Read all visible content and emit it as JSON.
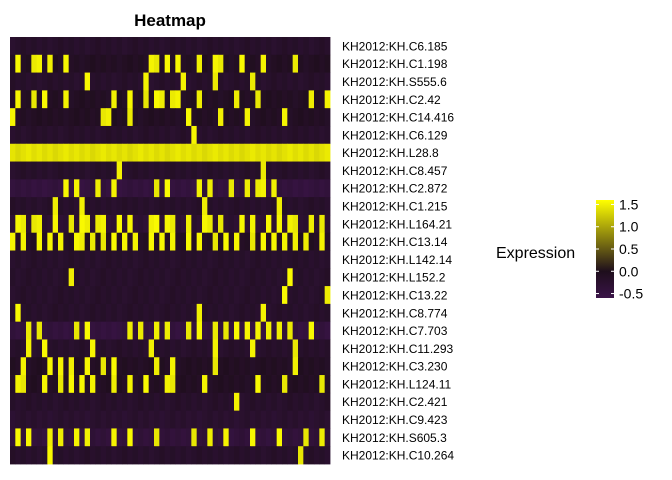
{
  "chart_data": {
    "type": "heatmap",
    "title": "Heatmap",
    "legend": {
      "title": "Expression",
      "ticks": [
        1.5,
        1.0,
        0.5,
        0.0,
        -0.5
      ],
      "tick_labels": [
        "1.5",
        "1.0",
        "0.5",
        "0.0",
        "-0.5"
      ],
      "range": [
        -0.6,
        1.6
      ],
      "placement": "right"
    },
    "color_scale": {
      "low": "#3a1448",
      "mid": "#1e0e1c",
      "high": "#ffff00"
    },
    "columns": 60,
    "rows": [
      {
        "label": "KH2012:KH.C6.185",
        "base": -0.2,
        "high_cols": []
      },
      {
        "label": "KH2012:KH.C1.198",
        "base": -0.1,
        "high_cols": [
          1,
          4,
          5,
          7,
          10,
          26,
          27,
          29,
          31,
          35,
          38,
          39,
          43,
          47,
          53
        ]
      },
      {
        "label": "KH2012:KH.S555.6",
        "base": -0.2,
        "high_cols": [
          14,
          25,
          32,
          38,
          45
        ]
      },
      {
        "label": "KH2012:KH.C2.42",
        "base": -0.1,
        "high_cols": [
          1,
          4,
          6,
          10,
          19,
          22,
          25,
          27,
          28,
          30,
          31,
          35,
          42,
          46,
          56,
          59
        ]
      },
      {
        "label": "KH2012:KH.C14.416",
        "base": -0.1,
        "high_cols": [
          0,
          17,
          18,
          22,
          33,
          39,
          44,
          51
        ]
      },
      {
        "label": "KH2012:KH.C6.129",
        "base": -0.2,
        "high_cols": [
          34
        ]
      },
      {
        "label": "KH2012:KH.L28.8",
        "base": 1.4,
        "high_cols": []
      },
      {
        "label": "KH2012:KH.C8.457",
        "base": -0.2,
        "high_cols": [
          20,
          47
        ]
      },
      {
        "label": "KH2012:KH.C2.872",
        "base": -0.45,
        "high_cols": [
          10,
          12,
          16,
          19,
          27,
          29,
          35,
          37,
          41,
          44,
          46,
          47,
          49
        ]
      },
      {
        "label": "KH2012:KH.C1.215",
        "base": -0.2,
        "high_cols": [
          8,
          13,
          36,
          50
        ]
      },
      {
        "label": "KH2012:KH.L164.21",
        "base": -0.3,
        "high_cols": [
          1,
          2,
          4,
          5,
          8,
          11,
          13,
          14,
          16,
          17,
          20,
          22,
          26,
          27,
          29,
          30,
          33,
          36,
          37,
          39,
          43,
          45,
          48,
          50,
          52,
          53,
          56,
          58
        ]
      },
      {
        "label": "KH2012:KH.C13.14",
        "base": -0.1,
        "high_cols": [
          0,
          2,
          5,
          7,
          9,
          12,
          13,
          15,
          17,
          19,
          21,
          23,
          26,
          28,
          30,
          33,
          35,
          38,
          40,
          42,
          45,
          47,
          49,
          51,
          53,
          55,
          58
        ]
      },
      {
        "label": "KH2012:KH.L142.14",
        "base": -0.2,
        "high_cols": []
      },
      {
        "label": "KH2012:KH.L152.2",
        "base": -0.2,
        "high_cols": [
          11,
          52
        ]
      },
      {
        "label": "KH2012:KH.C13.22",
        "base": -0.2,
        "high_cols": [
          51,
          59
        ]
      },
      {
        "label": "KH2012:KH.C8.774",
        "base": -0.2,
        "high_cols": [
          1,
          35,
          47
        ]
      },
      {
        "label": "KH2012:KH.C7.703",
        "base": -0.45,
        "high_cols": [
          3,
          5,
          12,
          14,
          22,
          24,
          27,
          29,
          33,
          35,
          38,
          40,
          42,
          44,
          46,
          48,
          50,
          52,
          56
        ]
      },
      {
        "label": "KH2012:KH.C11.293",
        "base": -0.2,
        "high_cols": [
          3,
          6,
          15,
          26,
          38,
          45,
          53
        ]
      },
      {
        "label": "KH2012:KH.C3.230",
        "base": -0.1,
        "high_cols": [
          2,
          7,
          9,
          11,
          14,
          17,
          19,
          27,
          30,
          38,
          53
        ]
      },
      {
        "label": "KH2012:KH.L124.11",
        "base": -0.1,
        "high_cols": [
          1,
          2,
          6,
          9,
          11,
          13,
          15,
          19,
          22,
          25,
          29,
          30,
          36,
          46,
          51,
          58
        ]
      },
      {
        "label": "KH2012:KH.C2.421",
        "base": -0.2,
        "high_cols": [
          42
        ]
      },
      {
        "label": "KH2012:KH.C9.423",
        "base": -0.25,
        "high_cols": []
      },
      {
        "label": "KH2012:KH.S605.3",
        "base": -0.4,
        "high_cols": [
          1,
          3,
          7,
          9,
          12,
          14,
          19,
          22,
          27,
          34,
          37,
          40,
          45,
          50,
          55,
          58
        ]
      },
      {
        "label": "KH2012:KH.C10.264",
        "base": -0.2,
        "high_cols": [
          7,
          54
        ]
      }
    ]
  }
}
